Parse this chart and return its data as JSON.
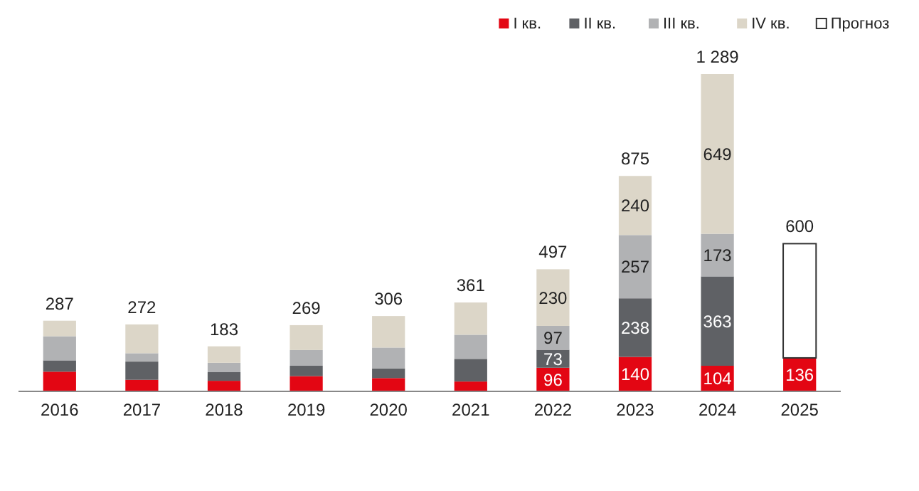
{
  "chart_data": {
    "type": "bar",
    "stacked": true,
    "legend": "top right",
    "tick_labels": "x",
    "categories": [
      "2016",
      "2017",
      "2018",
      "2019",
      "2020",
      "2021",
      "2022",
      "2023",
      "2024",
      "2025"
    ],
    "series": [
      {
        "name": "I кв.",
        "color": "#e30613",
        "values": [
          80,
          47,
          43,
          62,
          54,
          40,
          96,
          140,
          104,
          136
        ],
        "value_labels": [
          null,
          null,
          null,
          null,
          null,
          null,
          "96",
          "140",
          "104",
          "136"
        ]
      },
      {
        "name": "II кв.",
        "color": "#5f6165",
        "values": [
          46,
          74,
          35,
          42,
          39,
          92,
          73,
          238,
          363,
          null
        ],
        "value_labels": [
          null,
          null,
          null,
          null,
          null,
          null,
          "73",
          "238",
          "363",
          null
        ]
      },
      {
        "name": "III кв.",
        "color": "#b1b2b4",
        "values": [
          98,
          34,
          38,
          64,
          85,
          98,
          97,
          257,
          173,
          null
        ],
        "value_labels": [
          null,
          null,
          null,
          null,
          null,
          null,
          "97",
          "257",
          "173",
          null
        ]
      },
      {
        "name": "IV кв.",
        "color": "#dcd6c8",
        "values": [
          63,
          117,
          67,
          101,
          128,
          131,
          230,
          240,
          649,
          null
        ],
        "value_labels": [
          null,
          null,
          null,
          null,
          null,
          null,
          "230",
          "240",
          "649",
          null
        ]
      },
      {
        "name": "Прогноз",
        "color": "#ffffff",
        "values": [
          null,
          null,
          null,
          null,
          null,
          null,
          null,
          null,
          null,
          464
        ],
        "value_labels": [
          null,
          null,
          null,
          null,
          null,
          null,
          null,
          null,
          null,
          null
        ]
      }
    ],
    "totals": [
      "287",
      "272",
      "183",
      "269",
      "306",
      "361",
      "497",
      "875",
      "1 289",
      "600"
    ]
  }
}
